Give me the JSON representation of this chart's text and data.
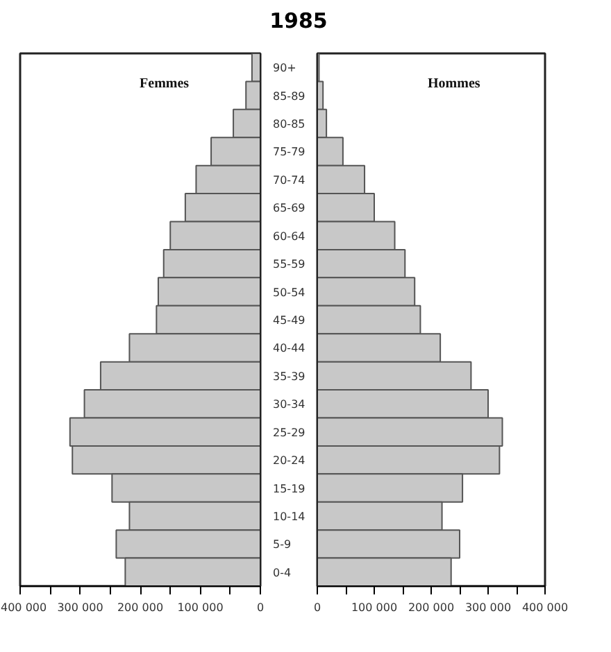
{
  "chart_data": [
    {
      "type": "bar",
      "orientation": "horizontal",
      "title": "1985",
      "categories": [
        "90+",
        "85-89",
        "80-85",
        "75-79",
        "70-74",
        "65-69",
        "60-64",
        "55-59",
        "50-54",
        "45-49",
        "40-44",
        "35-39",
        "30-34",
        "25-29",
        "20-24",
        "15-19",
        "10-14",
        "5-9",
        "0-4"
      ],
      "series": [
        {
          "name": "Femmes",
          "color": "#c8c8c8",
          "values": [
            14000,
            24000,
            45000,
            82000,
            107000,
            125000,
            150000,
            161000,
            170000,
            173000,
            218000,
            266000,
            293000,
            317000,
            313000,
            247000,
            218000,
            240000,
            225000
          ]
        }
      ],
      "xlim": [
        400000,
        0
      ],
      "xticks": [
        {
          "value": 400000,
          "label": "400 000"
        },
        {
          "value": 350000,
          "label": null
        },
        {
          "value": 300000,
          "label": "300 000"
        },
        {
          "value": 250000,
          "label": null
        },
        {
          "value": 200000,
          "label": "200 000"
        },
        {
          "value": 150000,
          "label": null
        },
        {
          "value": 100000,
          "label": "100 000"
        },
        {
          "value": 50000,
          "label": null
        },
        0
      ],
      "grid": false
    },
    {
      "type": "bar",
      "orientation": "horizontal",
      "categories": [
        null,
        null,
        null,
        null,
        null,
        null,
        null,
        null,
        null,
        null,
        null,
        null,
        null,
        null,
        null,
        null,
        null,
        null,
        null
      ],
      "series": [
        {
          "name": "Hommes",
          "color": "#c8c8c8",
          "values": [
            3000,
            10000,
            16000,
            45000,
            83000,
            100000,
            136000,
            154000,
            171000,
            181000,
            216000,
            270000,
            300000,
            325000,
            320000,
            255000,
            219000,
            250000,
            235000
          ]
        }
      ],
      "xlim": [
        0,
        400000
      ],
      "xticks": [
        0,
        {
          "value": 50000,
          "label": null
        },
        {
          "value": 100000,
          "label": "100 000"
        },
        {
          "value": 150000,
          "label": null
        },
        {
          "value": 200000,
          "label": "200 000"
        },
        {
          "value": 250000,
          "label": null
        },
        {
          "value": 300000,
          "label": "300 000"
        },
        {
          "value": 350000,
          "label": null
        },
        {
          "value": 400000,
          "label": "400 000"
        }
      ],
      "tick_labels": "x",
      "grid": false
    }
  ]
}
